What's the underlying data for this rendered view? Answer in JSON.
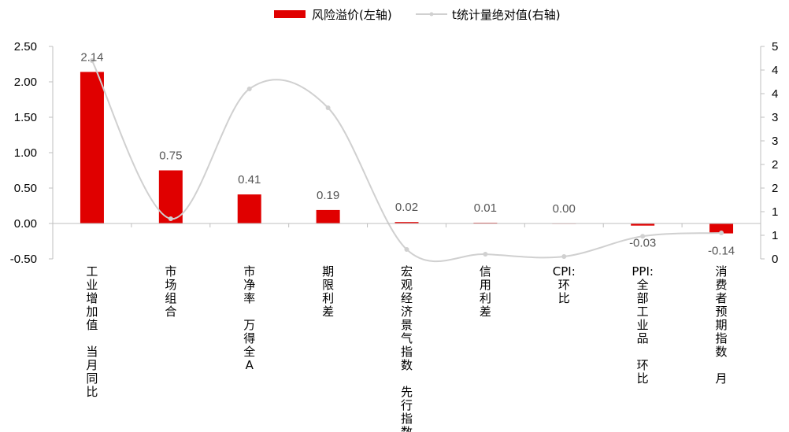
{
  "chart_data": {
    "type": "bar",
    "categories": [
      "工业增加值:当月同比",
      "市场组合",
      "市净率:万得全A",
      "期限利差",
      "宏观经济景气指数:先行指数",
      "信用利差",
      "CPI:环比",
      "PPI:全部工业品:环比",
      "消费者预期指数:月"
    ],
    "series": [
      {
        "name": "风险溢价(左轴)",
        "type": "bar",
        "axis": "left",
        "color": "#e00000",
        "values": [
          2.14,
          0.75,
          0.41,
          0.19,
          0.02,
          0.01,
          0.0,
          -0.03,
          -0.14
        ],
        "labels": [
          "2.14",
          "0.75",
          "0.41",
          "0.19",
          "0.02",
          "0.01",
          "0.00",
          "-0.03",
          "-0.14"
        ]
      },
      {
        "name": "t统计量绝对值(右轴)",
        "type": "line",
        "axis": "right",
        "color": "#d0d0d0",
        "smooth": true,
        "values": [
          4.2,
          0.85,
          3.6,
          3.2,
          0.2,
          0.1,
          0.05,
          0.48,
          0.55
        ]
      }
    ],
    "y_left": {
      "ylim": [
        -0.5,
        2.5
      ],
      "ticks": [
        "-0.50",
        "0.00",
        "0.50",
        "1.00",
        "1.50",
        "2.00",
        "2.50"
      ]
    },
    "y_right": {
      "ylim": [
        0,
        4.5
      ],
      "tick_labels": [
        "0",
        "1",
        "1",
        "2",
        "2",
        "3",
        "3",
        "4",
        "4",
        "5"
      ]
    },
    "legend_position": "top-center",
    "grid": false
  }
}
